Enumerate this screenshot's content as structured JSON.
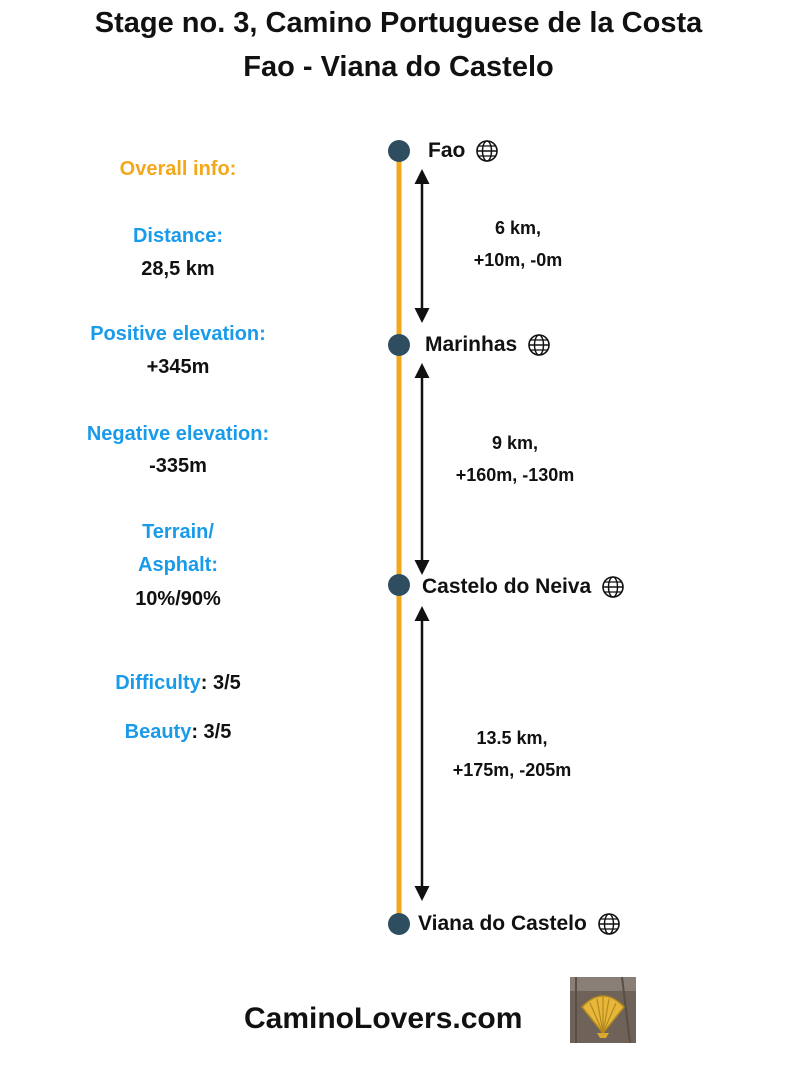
{
  "title": {
    "line1": "Stage no. 3, Camino Portuguese de la Costa",
    "line2": "Fao - Viana do Castelo"
  },
  "overall": {
    "heading": "Overall info:",
    "distance_label": "Distance:",
    "distance_value": "28,5 km",
    "pos_label": "Positive elevation:",
    "pos_value": "+345m",
    "neg_label": "Negative elevation:",
    "neg_value": "-335m",
    "terrain_label_1": "Terrain/",
    "terrain_label_2": "Asphalt:",
    "terrain_value": "10%/90%",
    "difficulty_label": "Difficulty",
    "difficulty_value": ": 3/5",
    "beauty_label": "Beauty",
    "beauty_value": ": 3/5"
  },
  "stops": [
    {
      "name": "Fao",
      "icon": "globe-icon"
    },
    {
      "name": "Marinhas",
      "icon": "globe-icon"
    },
    {
      "name": "Castelo do Neiva",
      "icon": "globe-icon"
    },
    {
      "name": "Viana do Castelo",
      "icon": "globe-icon"
    }
  ],
  "segments": [
    {
      "distance": "6 km,",
      "elevation": "+10m, -0m"
    },
    {
      "distance": "9 km,",
      "elevation": "+160m, -130m"
    },
    {
      "distance": "13.5 km,",
      "elevation": "+175m, -205m"
    }
  ],
  "footer": {
    "site": "CaminoLovers.com",
    "image": "scallop-shell-icon"
  },
  "colors": {
    "route_line": "#f3a81c",
    "stop_dot": "#2e4e5f",
    "label_blue": "#1a9bea",
    "heading_orange": "#f3a81c",
    "arrow": "#111111"
  }
}
